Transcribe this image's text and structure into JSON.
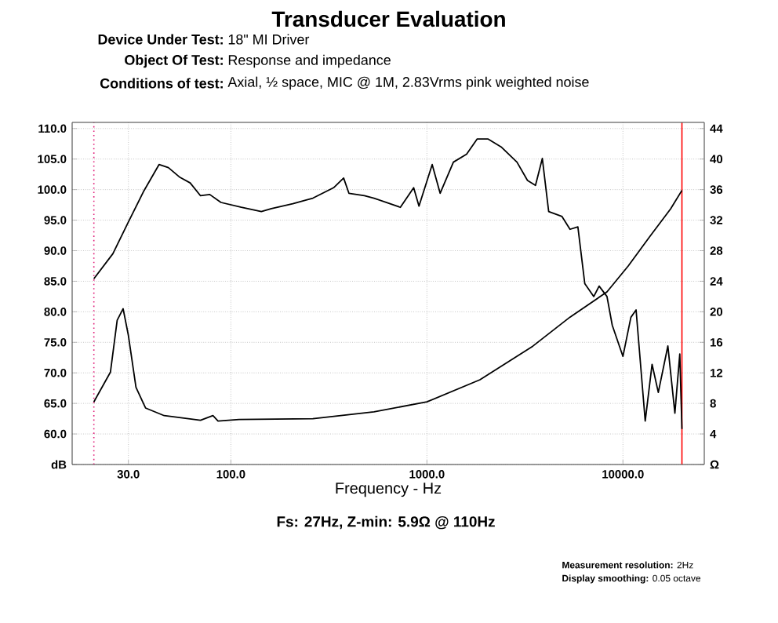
{
  "chart_data": {
    "type": "line",
    "title": "Transducer Evaluation",
    "xlabel": "Frequency - Hz",
    "annotations": [
      "Device Under Test:",
      "18\" MI Driver",
      "Object Of Test:",
      "Response and impedance",
      "Conditions of test:",
      "Axial, ½ space, MIC @ 1M, 2.83Vrms pink weighted noise",
      "Fs: 27Hz, Z-min: 5.9Ω @ 110Hz",
      "**Measurement resolution:** 2Hz",
      "**Display smoothing:** 0.05 octave"
    ],
    "log": "x",
    "grid": true,
    "line_style": "solid",
    "xlim": [
      15.5,
      26000
    ],
    "xticks": [
      {
        "value": 30,
        "label": "30.0"
      },
      {
        "value": 100,
        "label": "100.0"
      },
      {
        "value": 1000,
        "label": "1000.0"
      },
      {
        "value": 10000,
        "label": "10000.0"
      }
    ],
    "ylim": [
      55,
      111
    ],
    "yticks": [
      {
        "value": 55,
        "label": "dB"
      },
      {
        "value": 60,
        "label": "60.0"
      },
      {
        "value": 65,
        "label": "65.0"
      },
      {
        "value": 70,
        "label": "70.0"
      },
      {
        "value": 75,
        "label": "75.0"
      },
      {
        "value": 80,
        "label": "80.0"
      },
      {
        "value": 85,
        "label": "85.0"
      },
      {
        "value": 90,
        "label": "90.0"
      },
      {
        "value": 95,
        "label": "95.0"
      },
      {
        "value": 100,
        "label": "100.0"
      },
      {
        "value": 105,
        "label": "105.0"
      },
      {
        "value": 110,
        "label": "110.0"
      }
    ],
    "y2lim": [
      0,
      44.8
    ],
    "y2ticks": [
      {
        "value": 0,
        "label": "Ω"
      },
      4,
      8,
      12,
      16,
      20,
      24,
      28,
      32,
      36,
      40,
      44
    ],
    "ref_lines": [
      {
        "axis": "x",
        "value": 20,
        "color": "#e0207a",
        "line_style": "dotted"
      },
      {
        "axis": "x",
        "value": 20000,
        "color": "#ff0000",
        "line_style": "solid"
      }
    ],
    "series": [
      {
        "color": "#000000",
        "x": [
          20,
          25,
          30,
          36,
          43,
          48,
          55,
          62,
          70,
          78,
          89,
          113,
          143,
          161,
          207,
          262,
          334,
          376,
          400,
          480,
          537,
          732,
          856,
          911,
          1064,
          1168,
          1365,
          1594,
          1806,
          2046,
          2390,
          2880,
          3260,
          3580,
          3880,
          4180,
          4890,
          5370,
          5890,
          6390,
          7100,
          7560,
          8290,
          8820,
          10000,
          10980,
          11670,
          12990,
          14080,
          15150,
          16950,
          18410,
          19500,
          20000
        ],
        "values": [
          85.4,
          89.5,
          94.7,
          99.8,
          104.1,
          103.6,
          102,
          101.1,
          99,
          99.2,
          97.9,
          97.1,
          96.4,
          96.9,
          97.7,
          98.6,
          100.3,
          101.9,
          99.4,
          99,
          98.6,
          97.1,
          100.3,
          97.3,
          104.1,
          99.4,
          104.5,
          105.8,
          108.3,
          108.3,
          107,
          104.5,
          101.5,
          100.7,
          105.1,
          96.4,
          95.6,
          93.5,
          93.9,
          84.6,
          82.5,
          84.2,
          82.5,
          77.8,
          72.7,
          79.1,
          80.3,
          62.1,
          71.4,
          66.8,
          74.4,
          63.4,
          73.1,
          60.8
        ]
      },
      {
        "color": "#000000",
        "axis": "y2",
        "x": [
          20,
          24.3,
          26.3,
          28.2,
          30,
          32.8,
          36.7,
          45.7,
          70,
          81,
          86,
          110,
          262,
          537,
          1000,
          1864,
          3470,
          5370,
          8290,
          10640,
          13660,
          17530,
          20000
        ],
        "values": [
          8.2,
          12.1,
          18.9,
          20.4,
          16.9,
          10.1,
          7.4,
          6.4,
          5.8,
          6.4,
          5.7,
          5.9,
          6.0,
          6.9,
          8.2,
          11.1,
          15.5,
          19.3,
          22.6,
          26,
          29.8,
          33.5,
          35.9
        ]
      }
    ]
  }
}
